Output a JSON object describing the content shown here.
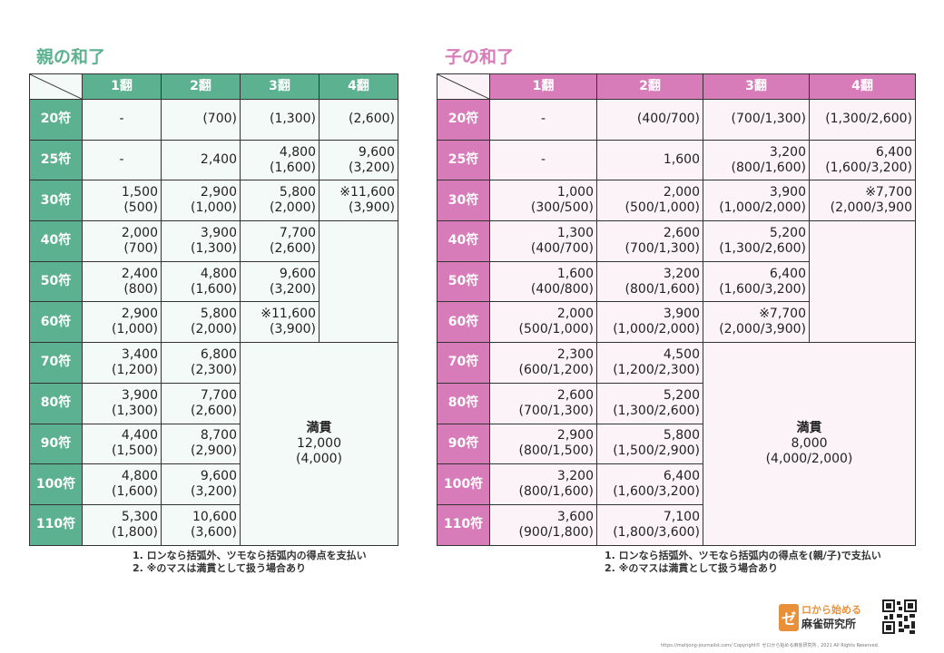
{
  "oya": {
    "title": "親の和了",
    "headers": [
      "1翻",
      "2翻",
      "3翻",
      "4翻"
    ],
    "fu": [
      "20符",
      "25符",
      "30符",
      "40符",
      "50符",
      "60符",
      "70符",
      "80符",
      "90符",
      "100符",
      "110符"
    ],
    "rows": [
      [
        [
          "-"
        ],
        [
          "(700)"
        ],
        [
          "(1,300)"
        ],
        [
          "(2,600)"
        ]
      ],
      [
        [
          "-"
        ],
        [
          "2,400"
        ],
        [
          "4,800",
          "(1,600)"
        ],
        [
          "9,600",
          "(3,200)"
        ]
      ],
      [
        [
          "1,500",
          "(500)"
        ],
        [
          "2,900",
          "(1,000)"
        ],
        [
          "5,800",
          "(2,000)"
        ],
        [
          "※11,600",
          "(3,900)"
        ]
      ],
      [
        [
          "2,000",
          "(700)"
        ],
        [
          "3,900",
          "(1,300)"
        ],
        [
          "7,700",
          "(2,600)"
        ]
      ],
      [
        [
          "2,400",
          "(800)"
        ],
        [
          "4,800",
          "(1,600)"
        ],
        [
          "9,600",
          "(3,200)"
        ]
      ],
      [
        [
          "2,900",
          "(1,000)"
        ],
        [
          "5,800",
          "(2,000)"
        ],
        [
          "※11,600",
          "(3,900)"
        ]
      ],
      [
        [
          "3,400",
          "(1,200)"
        ],
        [
          "6,800",
          "(2,300)"
        ]
      ],
      [
        [
          "3,900",
          "(1,300)"
        ],
        [
          "7,700",
          "(2,600)"
        ]
      ],
      [
        [
          "4,400",
          "(1,500)"
        ],
        [
          "8,700",
          "(2,900)"
        ]
      ],
      [
        [
          "4,800",
          "(1,600)"
        ],
        [
          "9,600",
          "(3,200)"
        ]
      ],
      [
        [
          "5,300",
          "(1,800)"
        ],
        [
          "10,600",
          "(3,600)"
        ]
      ]
    ],
    "mangan": [
      "満貫",
      "12,000",
      "(4,000)"
    ],
    "notes": [
      "1. ロンなら括弧外、ツモなら括弧内の得点を支払い",
      "2. ※のマスは満貫として扱う場合あり"
    ]
  },
  "ko": {
    "title": "子の和了",
    "headers": [
      "1翻",
      "2翻",
      "3翻",
      "4翻"
    ],
    "fu": [
      "20符",
      "25符",
      "30符",
      "40符",
      "50符",
      "60符",
      "70符",
      "80符",
      "90符",
      "100符",
      "110符"
    ],
    "rows": [
      [
        [
          "-"
        ],
        [
          "(400/700)"
        ],
        [
          "(700/1,300)"
        ],
        [
          "(1,300/2,600)"
        ]
      ],
      [
        [
          "-"
        ],
        [
          "1,600"
        ],
        [
          "3,200",
          "(800/1,600)"
        ],
        [
          "6,400",
          "(1,600/3,200)"
        ]
      ],
      [
        [
          "1,000",
          "(300/500)"
        ],
        [
          "2,000",
          "(500/1,000)"
        ],
        [
          "3,900",
          "(1,000/2,000)"
        ],
        [
          "※7,700",
          "(2,000/3,900"
        ]
      ],
      [
        [
          "1,300",
          "(400/700)"
        ],
        [
          "2,600",
          "(700/1,300)"
        ],
        [
          "5,200",
          "(1,300/2,600)"
        ]
      ],
      [
        [
          "1,600",
          "(400/800)"
        ],
        [
          "3,200",
          "(800/1,600)"
        ],
        [
          "6,400",
          "(1,600/3,200)"
        ]
      ],
      [
        [
          "2,000",
          "(500/1,000)"
        ],
        [
          "3,900",
          "(1,000/2,000)"
        ],
        [
          "※7,700",
          "(2,000/3,900)"
        ]
      ],
      [
        [
          "2,300",
          "(600/1,200)"
        ],
        [
          "4,500",
          "(1,200/2,300)"
        ]
      ],
      [
        [
          "2,600",
          "(700/1,300)"
        ],
        [
          "5,200",
          "(1,300/2,600)"
        ]
      ],
      [
        [
          "2,900",
          "(800/1,500)"
        ],
        [
          "5,800",
          "(1,500/2,900)"
        ]
      ],
      [
        [
          "3,200",
          "(800/1,600)"
        ],
        [
          "6,400",
          "(1,600/3,200)"
        ]
      ],
      [
        [
          "3,600",
          "(900/1,800)"
        ],
        [
          "7,100",
          "(1,800/3,600)"
        ]
      ]
    ],
    "mangan": [
      "満貫",
      "8,000",
      "(4,000/2,000)"
    ],
    "notes": [
      "1. ロンなら括弧外、ツモなら括弧内の得点を(親/子)で支払い",
      "2. ※のマスは満貫として扱う場合あり"
    ]
  },
  "logo": {
    "badge": "ゼ",
    "line1": "ロから始める",
    "line2": "麻雀研究所"
  },
  "footer": "https://mahjong-journalist.com/  Copyright© ゼロから始める麻雀研究所 , 2021 All Rights Reserved.",
  "colors": {
    "oya_accent": "#5cb191",
    "ko_accent": "#d77bb9",
    "logo_accent": "#e8913a"
  }
}
